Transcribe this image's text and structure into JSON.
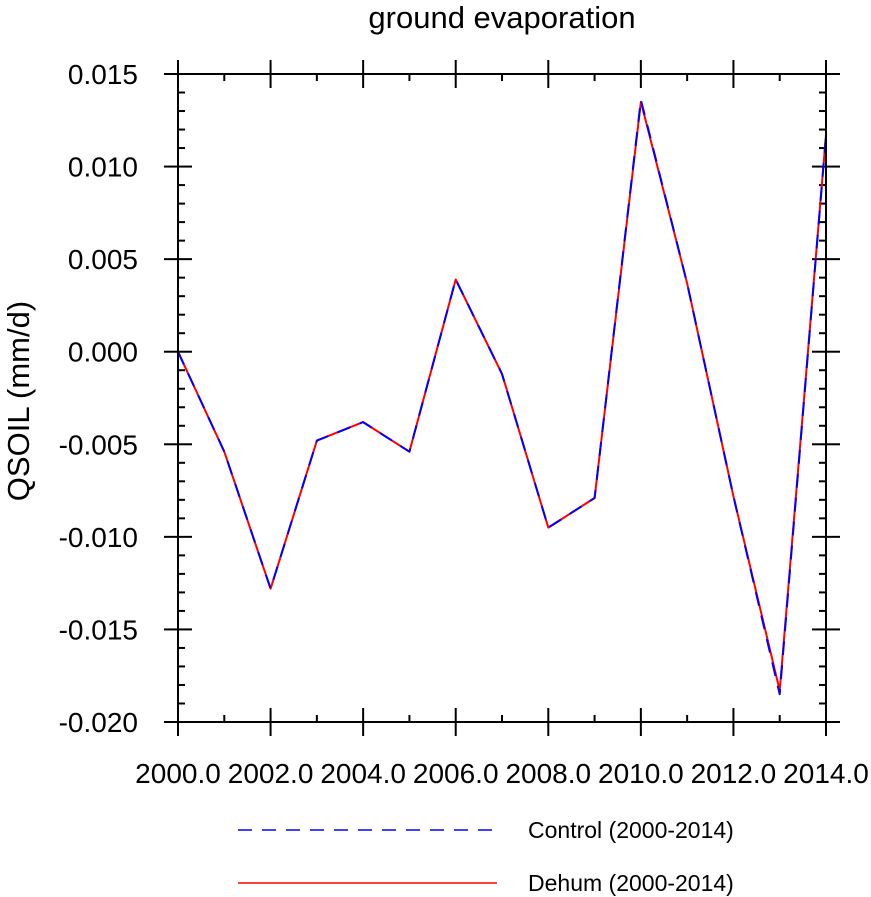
{
  "chart_data": {
    "type": "line",
    "title": "ground evaporation",
    "xlabel": "",
    "ylabel": "QSOIL  (mm/d)",
    "xlim": [
      2000,
      2014
    ],
    "ylim": [
      -0.02,
      0.015
    ],
    "x_ticks": [
      2000,
      2002,
      2004,
      2006,
      2008,
      2010,
      2012,
      2014
    ],
    "x_tick_labels": [
      "2000.0",
      "2002.0",
      "2004.0",
      "2006.0",
      "2008.0",
      "2010.0",
      "2012.0",
      "2014.0"
    ],
    "y_ticks": [
      0.015,
      0.01,
      0.005,
      0.0,
      -0.005,
      -0.01,
      -0.015,
      -0.02
    ],
    "y_tick_labels": [
      "0.015",
      "0.010",
      "0.005",
      "0.000",
      "-0.005",
      "-0.010",
      "-0.015",
      "-0.020"
    ],
    "grid": false,
    "legend_position": "bottom",
    "x": [
      2000,
      2001,
      2002,
      2003,
      2004,
      2005,
      2006,
      2007,
      2008,
      2009,
      2010,
      2011,
      2012,
      2013,
      2014
    ],
    "series": [
      {
        "name": "Control (2000-2014)",
        "color": "#0000ff",
        "style": "dashed",
        "values": [
          0.0,
          -0.0054,
          -0.0128,
          -0.0048,
          -0.0038,
          -0.0054,
          0.0039,
          -0.0012,
          -0.0095,
          -0.0079,
          0.0136,
          0.0037,
          -0.0078,
          -0.0185,
          0.0117
        ]
      },
      {
        "name": "Dehum (2000-2014)",
        "color": "#ff0000",
        "style": "solid",
        "values": [
          0.0,
          -0.0054,
          -0.0128,
          -0.0048,
          -0.0038,
          -0.0054,
          0.0039,
          -0.0012,
          -0.0095,
          -0.0079,
          0.0135,
          0.0037,
          -0.0078,
          -0.0183,
          0.0117
        ]
      }
    ]
  }
}
